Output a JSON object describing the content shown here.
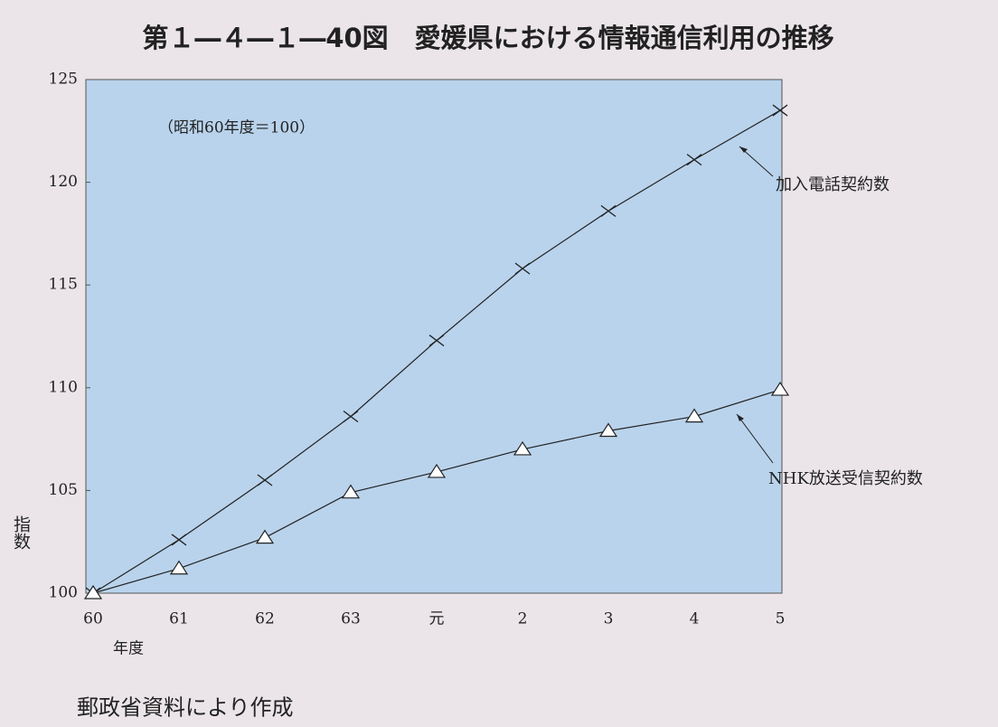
{
  "chart_data": {
    "type": "line",
    "title": "第１―４―１―40図　愛媛県における情報通信利用の推移",
    "subtitle": "（昭和60年度＝100）",
    "y_label": "指数",
    "x_label": "年度",
    "source": "郵政省資料により作成",
    "categories": [
      "60",
      "61",
      "62",
      "63",
      "元",
      "2",
      "3",
      "4",
      "5"
    ],
    "series": [
      {
        "name": "加入電話契約数",
        "color": "#222222",
        "marker": "x",
        "values": [
          100,
          102.6,
          105.5,
          108.6,
          112.3,
          115.8,
          118.6,
          121.1,
          123.5
        ]
      },
      {
        "name": "NHK放送受信契約数",
        "color": "#222222",
        "marker": "triangle",
        "values": [
          100,
          101.2,
          102.7,
          104.9,
          105.9,
          107.0,
          107.9,
          108.6,
          109.9
        ]
      }
    ],
    "ylim": [
      100,
      125
    ],
    "yticks": [
      100,
      105,
      110,
      115,
      120,
      125
    ]
  }
}
